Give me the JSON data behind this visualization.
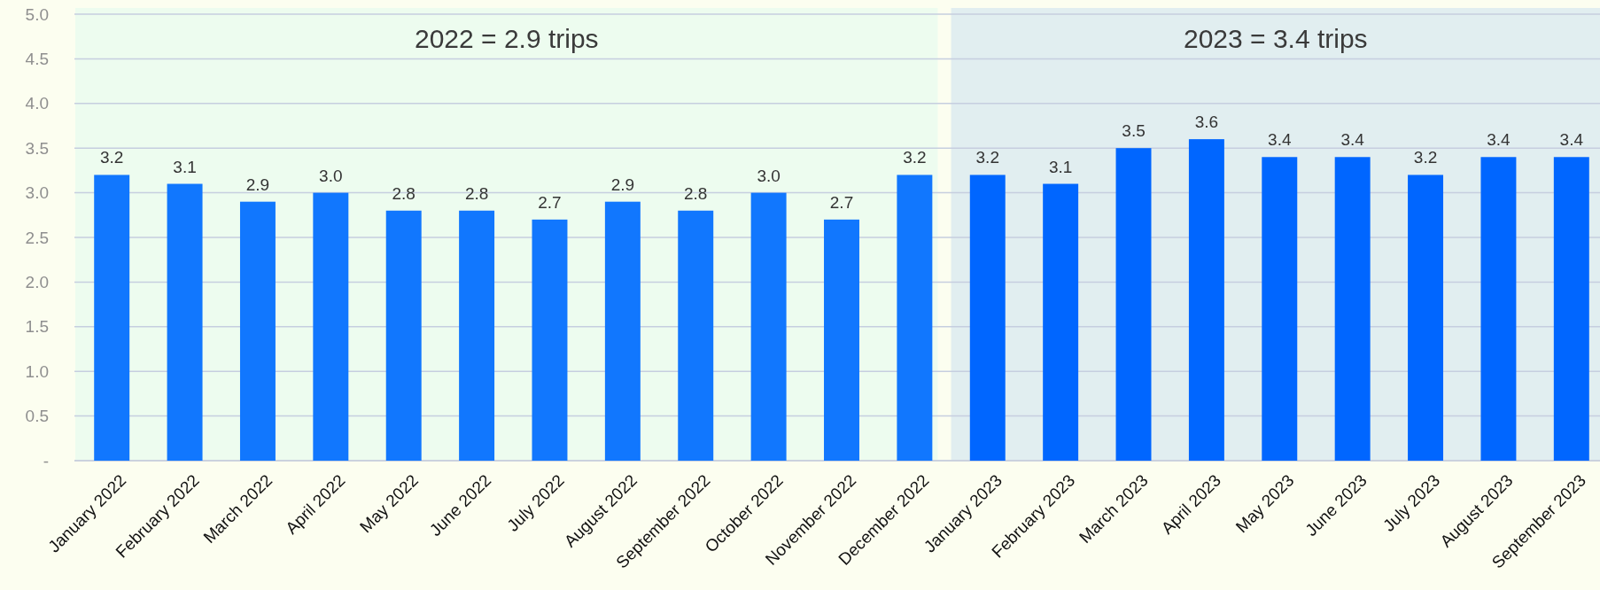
{
  "chart_data": {
    "type": "bar",
    "categories": [
      "January 2022",
      "February 2022",
      "March 2022",
      "April 2022",
      "May 2022",
      "June 2022",
      "July 2022",
      "August 2022",
      "September 2022",
      "October 2022",
      "November 2022",
      "December 2022",
      "January 2023",
      "February 2023",
      "March 2023",
      "April 2023",
      "May 2023",
      "June 2023",
      "July 2023",
      "August 2023",
      "September 2023"
    ],
    "values": [
      3.2,
      3.1,
      2.9,
      3.0,
      2.8,
      2.8,
      2.7,
      2.9,
      2.8,
      3.0,
      2.7,
      3.2,
      3.2,
      3.1,
      3.5,
      3.6,
      3.4,
      3.4,
      3.2,
      3.4,
      3.4
    ],
    "value_labels": [
      "3.2",
      "3.1",
      "2.9",
      "3.0",
      "2.8",
      "2.8",
      "2.7",
      "2.9",
      "2.8",
      "3.0",
      "2.7",
      "3.2",
      "3.2",
      "3.1",
      "3.5",
      "3.6",
      "3.4",
      "3.4",
      "3.2",
      "3.4",
      "3.4"
    ],
    "colors": [
      "#1177fe",
      "#1177fe",
      "#1177fe",
      "#1177fe",
      "#1177fe",
      "#1177fe",
      "#1177fe",
      "#1177fe",
      "#1177fe",
      "#1177fe",
      "#1177fe",
      "#1177fe",
      "#0066ff",
      "#0066ff",
      "#0066ff",
      "#0066ff",
      "#0066ff",
      "#0066ff",
      "#0066ff",
      "#0066ff",
      "#0066ff"
    ],
    "ylim": [
      0,
      5
    ],
    "yticks": [
      {
        "value": 0,
        "label": "-"
      },
      0.5,
      {
        "value": 1,
        "label": "1.0"
      },
      1.5,
      {
        "value": 2,
        "label": "2.0"
      },
      2.5,
      {
        "value": 3,
        "label": "3.0"
      },
      3.5,
      {
        "value": 4,
        "label": "4.0"
      },
      4.5,
      {
        "value": 5,
        "label": "5.0"
      }
    ],
    "grid": "y",
    "bands": [
      {
        "axis": "x",
        "from": "January 2022",
        "to": "December 2022",
        "label": "2022 = 2.9 trips",
        "color": "#edfcef"
      },
      {
        "axis": "x",
        "from": "January 2023",
        "to": "September 2023",
        "label": "2023 = 3.4 trips",
        "color": "#e1eef0"
      }
    ]
  }
}
